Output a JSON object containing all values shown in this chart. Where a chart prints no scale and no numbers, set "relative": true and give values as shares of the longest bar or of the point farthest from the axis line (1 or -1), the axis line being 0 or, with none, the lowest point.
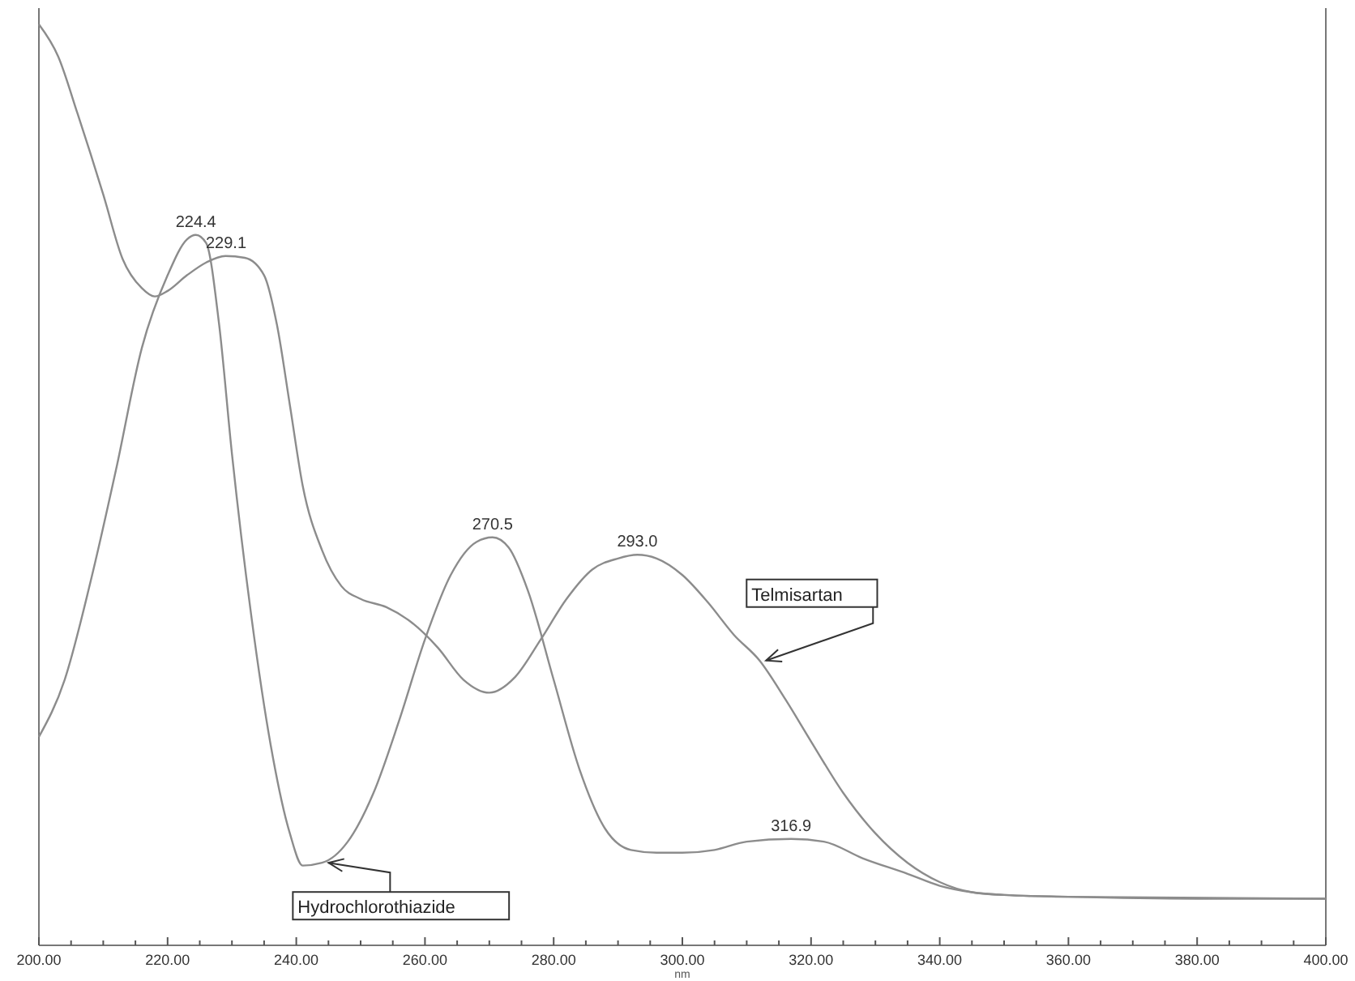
{
  "chart_data": {
    "type": "line",
    "relative": true,
    "xlabel": "nm",
    "xlim": [
      200,
      400
    ],
    "xticks": [
      {
        "value": 200,
        "label": "200.00"
      },
      {
        "value": 205,
        "label": null
      },
      {
        "value": 210,
        "label": null
      },
      {
        "value": 215,
        "label": null
      },
      {
        "value": 220,
        "label": "220.00"
      },
      {
        "value": 225,
        "label": null
      },
      {
        "value": 230,
        "label": null
      },
      {
        "value": 235,
        "label": null
      },
      {
        "value": 240,
        "label": "240.00"
      },
      {
        "value": 245,
        "label": null
      },
      {
        "value": 250,
        "label": null
      },
      {
        "value": 255,
        "label": null
      },
      {
        "value": 260,
        "label": "260.00"
      },
      {
        "value": 265,
        "label": null
      },
      {
        "value": 270,
        "label": null
      },
      {
        "value": 275,
        "label": null
      },
      {
        "value": 280,
        "label": "280.00"
      },
      {
        "value": 285,
        "label": null
      },
      {
        "value": 290,
        "label": null
      },
      {
        "value": 295,
        "label": null
      },
      {
        "value": 300,
        "label": "300.00"
      },
      {
        "value": 305,
        "label": null
      },
      {
        "value": 310,
        "label": null
      },
      {
        "value": 315,
        "label": null
      },
      {
        "value": 320,
        "label": "320.00"
      },
      {
        "value": 325,
        "label": null
      },
      {
        "value": 330,
        "label": null
      },
      {
        "value": 335,
        "label": null
      },
      {
        "value": 340,
        "label": "340.00"
      },
      {
        "value": 345,
        "label": null
      },
      {
        "value": 350,
        "label": null
      },
      {
        "value": 355,
        "label": null
      },
      {
        "value": 360,
        "label": "360.00"
      },
      {
        "value": 365,
        "label": null
      },
      {
        "value": 370,
        "label": null
      },
      {
        "value": 375,
        "label": null
      },
      {
        "value": 380,
        "label": "380.00"
      },
      {
        "value": 385,
        "label": null
      },
      {
        "value": 390,
        "label": null
      },
      {
        "value": 395,
        "label": null
      },
      {
        "value": 400,
        "label": "400.00"
      }
    ],
    "grid": false,
    "legend": false,
    "marker": "none",
    "line_style": "solid",
    "tick_labels": "x",
    "series": [
      {
        "name": "Telmisartan",
        "color": "#8c8c8c",
        "x": [
          200,
          203,
          206,
          210,
          213,
          216,
          218,
          220,
          223,
          226,
          229,
          232,
          235,
          237,
          239,
          241,
          244,
          247,
          250,
          254,
          258,
          262,
          266,
          270,
          274,
          278,
          282,
          286,
          290,
          293,
          296,
          300,
          304,
          308,
          312,
          316,
          320,
          325,
          330,
          335,
          340,
          345,
          350,
          360,
          380,
          400
        ],
        "values": [
          1.0,
          0.965,
          0.903,
          0.815,
          0.745,
          0.713,
          0.704,
          0.71,
          0.727,
          0.741,
          0.748,
          0.746,
          0.727,
          0.673,
          0.586,
          0.498,
          0.428,
          0.389,
          0.375,
          0.366,
          0.349,
          0.322,
          0.287,
          0.273,
          0.29,
          0.331,
          0.375,
          0.407,
          0.419,
          0.423,
          0.419,
          0.401,
          0.371,
          0.336,
          0.308,
          0.266,
          0.22,
          0.164,
          0.12,
          0.088,
          0.067,
          0.056,
          0.053,
          0.051,
          0.049,
          0.049
        ]
      },
      {
        "name": "Hydrochlorothiazide",
        "color": "#8c8c8c",
        "x": [
          200,
          204,
          208,
          212,
          216,
          220,
          223,
          224.4,
          226,
          228,
          230,
          233,
          236,
          239,
          241,
          244,
          248,
          252,
          256,
          260,
          264,
          268,
          270.5,
          273,
          276,
          280,
          284,
          288,
          292,
          296,
          300,
          305,
          310,
          316.9,
          322,
          328,
          335,
          340,
          345,
          350,
          360,
          400
        ],
        "values": [
          0.225,
          0.287,
          0.393,
          0.516,
          0.648,
          0.727,
          0.766,
          0.771,
          0.762,
          0.674,
          0.533,
          0.357,
          0.217,
          0.12,
          0.085,
          0.088,
          0.111,
          0.164,
          0.243,
          0.331,
          0.401,
          0.437,
          0.442,
          0.431,
          0.384,
          0.287,
          0.19,
          0.125,
          0.102,
          0.099,
          0.099,
          0.102,
          0.111,
          0.114,
          0.111,
          0.093,
          0.076,
          0.063,
          0.056,
          0.053,
          0.051,
          0.049
        ]
      }
    ],
    "annotations": [
      {
        "text": "224.4",
        "x": 224.4,
        "y": 0.771
      },
      {
        "text": "229.1",
        "x": 229.1,
        "y": 0.748
      },
      {
        "text": "270.5",
        "x": 270.5,
        "y": 0.442
      },
      {
        "text": "293.0",
        "x": 293,
        "y": 0.423
      },
      {
        "text": "316.9",
        "x": 316.9,
        "y": 0.114
      }
    ]
  }
}
